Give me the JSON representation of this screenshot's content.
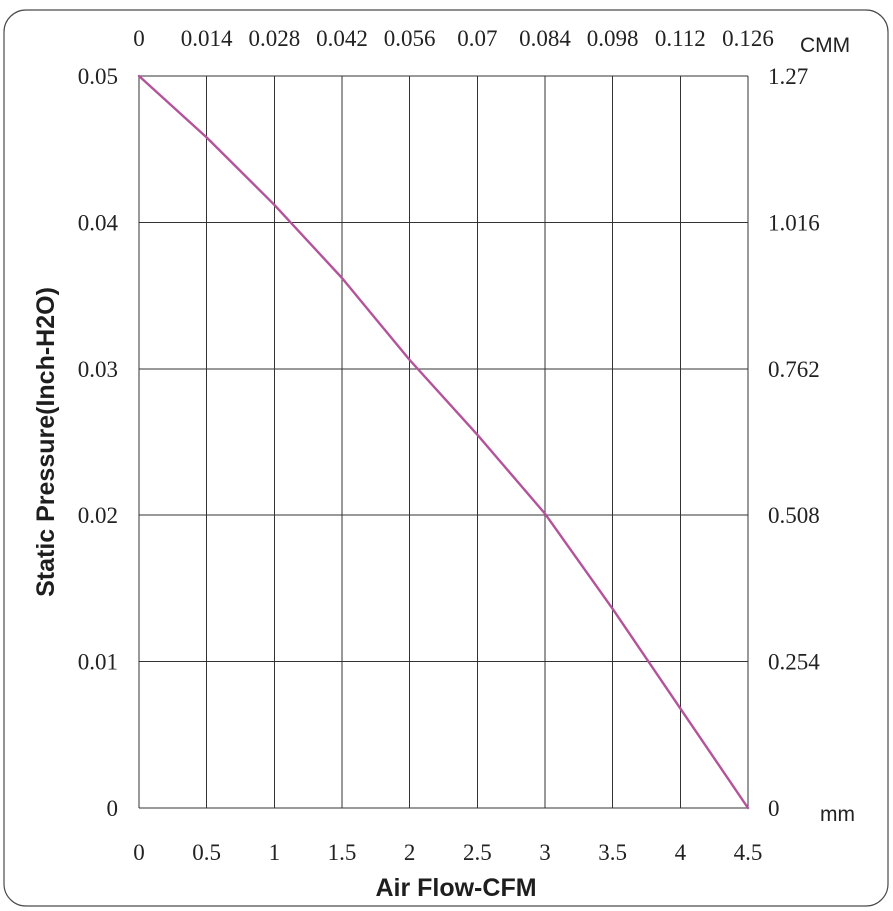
{
  "chart_data": {
    "type": "line",
    "xlabel": "Air Flow-CFM",
    "ylabel": "Static Pressure(Inch-H2O)",
    "xlim": [
      0,
      4.5
    ],
    "ylim": [
      0,
      0.05
    ],
    "x_ticks": [
      "0",
      "0.5",
      "1",
      "1.5",
      "2",
      "2.5",
      "3",
      "3.5",
      "4",
      "4.5"
    ],
    "y_ticks": [
      "0",
      "0.01",
      "0.02",
      "0.03",
      "0.04",
      "0.05"
    ],
    "top_axis": {
      "unit": "CMM",
      "ticks": [
        "0",
        "0.014",
        "0.028",
        "0.042",
        "0.056",
        "0.07",
        "0.084",
        "0.098",
        "0.112",
        "0.126"
      ]
    },
    "right_axis": {
      "unit": "mm",
      "ticks": [
        "0",
        "0.254",
        "0.508",
        "0.762",
        "1.016",
        "1.27"
      ]
    },
    "grid": true,
    "color": "#b4539a",
    "series": [
      {
        "x": [
          0,
          0.5,
          1.0,
          1.5,
          2.0,
          2.5,
          3.0,
          3.5,
          4.0,
          4.5
        ],
        "y": [
          0.05,
          0.0458,
          0.0412,
          0.0362,
          0.0306,
          0.0255,
          0.0201,
          0.0136,
          0.0068,
          0
        ]
      }
    ]
  }
}
